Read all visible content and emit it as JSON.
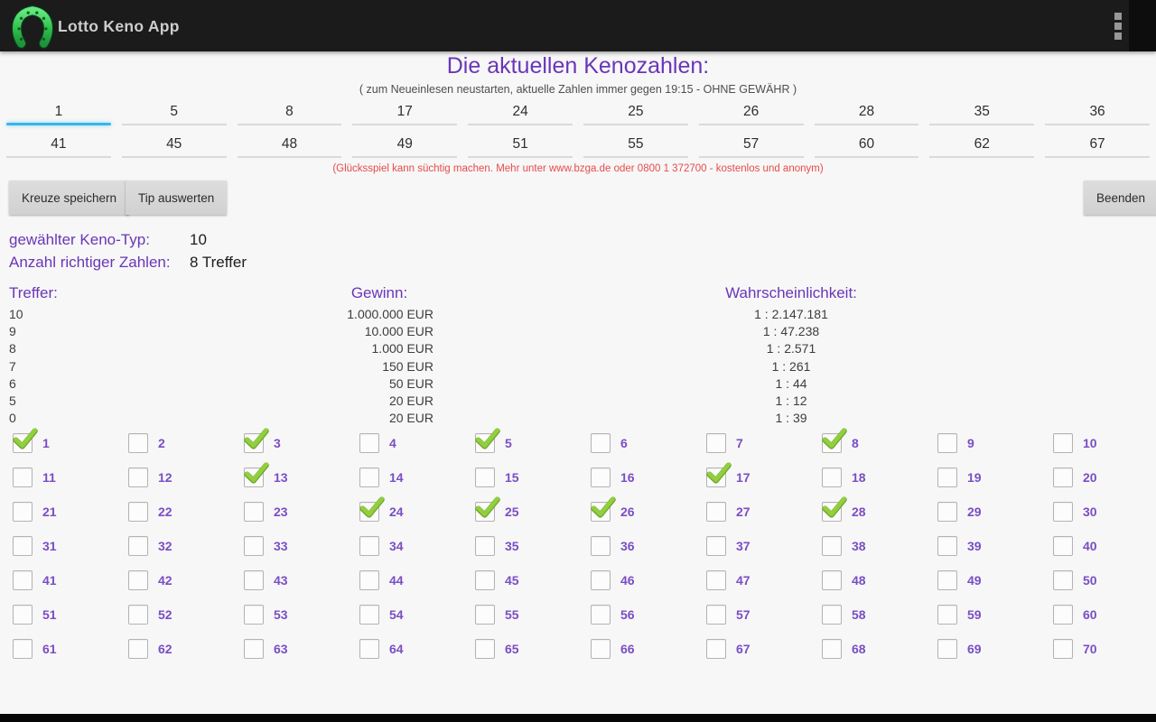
{
  "app": {
    "title": "Lotto Keno App"
  },
  "icons": {
    "logo": "horseshoe-icon",
    "menu": "overflow-menu-icon",
    "checked": "green-checkmark-icon"
  },
  "header": {
    "title": "Die aktuellen Kenozahlen:",
    "subtitle": "( zum Neueinlesen neustarten, aktuelle Zahlen immer gegen 19:15 - OHNE GEWÄHR )"
  },
  "drawn_numbers": {
    "row1": [
      "1",
      "5",
      "8",
      "17",
      "24",
      "25",
      "26",
      "28",
      "35",
      "36"
    ],
    "row2": [
      "41",
      "45",
      "48",
      "49",
      "51",
      "55",
      "57",
      "60",
      "62",
      "67"
    ],
    "focused_index": 0
  },
  "warning": "(Glücksspiel kann süchtig machen. Mehr unter www.bzga.de oder 0800 1 372700 - kostenlos und anonym)",
  "buttons": {
    "save": "Kreuze speichern",
    "evaluate": "Tip auswerten",
    "quit": "Beenden"
  },
  "info": {
    "keno_type_label": "gewählter Keno-Typ:",
    "keno_type_value": "10",
    "hits_label": "Anzahl richtiger Zahlen:",
    "hits_value": "8 Treffer"
  },
  "payout": {
    "headers": {
      "hits": "Treffer:",
      "win": "Gewinn:",
      "prob": "Wahrscheinlichkeit:"
    },
    "rows": [
      {
        "hits": "10",
        "win": "1.000.000 EUR",
        "prob": "1 : 2.147.181"
      },
      {
        "hits": "9",
        "win": "10.000 EUR",
        "prob": "1 : 47.238"
      },
      {
        "hits": "8",
        "win": "1.000 EUR",
        "prob": "1 : 2.571"
      },
      {
        "hits": "7",
        "win": "150 EUR",
        "prob": "1 : 261"
      },
      {
        "hits": "6",
        "win": "50 EUR",
        "prob": "1 : 44"
      },
      {
        "hits": "5",
        "win": "20 EUR",
        "prob": "1 : 12"
      },
      {
        "hits": "0",
        "win": "20 EUR",
        "prob": "1 : 39"
      }
    ]
  },
  "grid": {
    "numbers": [
      1,
      2,
      3,
      4,
      5,
      6,
      7,
      8,
      9,
      10,
      11,
      12,
      13,
      14,
      15,
      16,
      17,
      18,
      19,
      20,
      21,
      22,
      23,
      24,
      25,
      26,
      27,
      28,
      29,
      30,
      31,
      32,
      33,
      34,
      35,
      36,
      37,
      38,
      39,
      40,
      41,
      42,
      43,
      44,
      45,
      46,
      47,
      48,
      49,
      50,
      51,
      52,
      53,
      54,
      55,
      56,
      57,
      58,
      59,
      60,
      61,
      62,
      63,
      64,
      65,
      66,
      67,
      68,
      69,
      70
    ],
    "checked": [
      1,
      3,
      5,
      8,
      13,
      17,
      24,
      25,
      26,
      28
    ]
  },
  "colors": {
    "action_bar_bg": "#1b1b1b",
    "app_title_text": "#cdcdcd",
    "heading_purple": "#6a36b8",
    "grid_number_purple": "#7a4ec4",
    "warning_red": "#e84b4b",
    "check_green": "#8dc63f",
    "focused_underline_cyan": "#35b7e9",
    "button_bg": "#d8d8d8",
    "page_bg": "#f7f7f7"
  }
}
